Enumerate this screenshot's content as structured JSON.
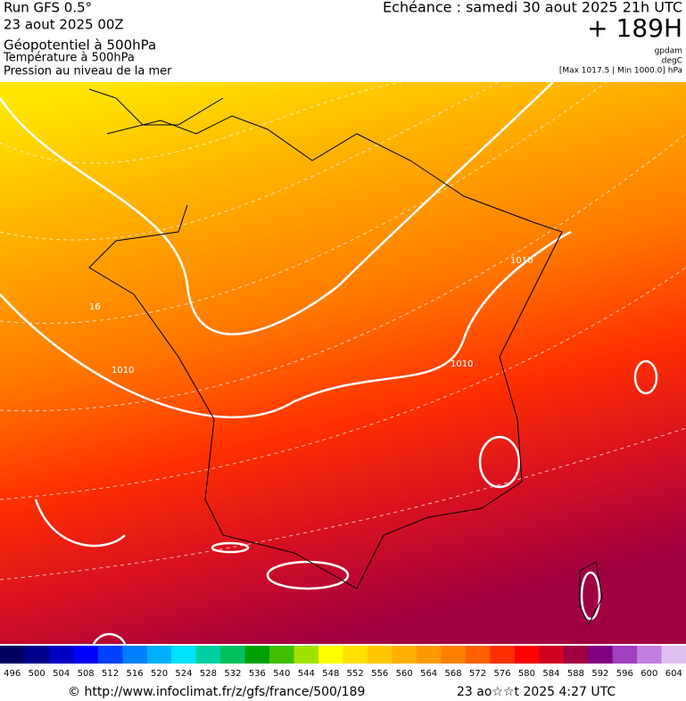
{
  "header": {
    "run": "Run GFS 0.5°",
    "date": "23 aout 2025 00Z",
    "line1": "Géopotentiel à 500hPa",
    "line2": "Température à 500hPa",
    "line3": "Pression au niveau de la mer",
    "valid": "Echéance : samedi 30 aout 2025 21h UTC",
    "lead": "+ 189H",
    "unit1": "gpdam",
    "unit2": "degC",
    "range": "[Max 1017.5 | Min 1000.0] hPa"
  },
  "map": {
    "contour_labels": [
      "1010",
      "1010",
      "1010",
      "16"
    ]
  },
  "colorbar": {
    "labels": [
      496,
      500,
      504,
      508,
      512,
      516,
      520,
      524,
      528,
      532,
      536,
      540,
      544,
      548,
      552,
      556,
      560,
      564,
      568,
      572,
      576,
      580,
      584,
      588,
      592,
      596,
      600,
      604
    ],
    "colors": [
      "#000060",
      "#00008c",
      "#0000c0",
      "#0000ff",
      "#0040ff",
      "#0080ff",
      "#00b0ff",
      "#00e0ff",
      "#00d0a0",
      "#00c060",
      "#00a000",
      "#40c000",
      "#a0e000",
      "#ffff00",
      "#ffe000",
      "#ffc800",
      "#ffb000",
      "#ff9800",
      "#ff8000",
      "#ff6000",
      "#ff3000",
      "#ff0000",
      "#d00020",
      "#a00040",
      "#800080",
      "#a040c0",
      "#c080e0",
      "#e0c0f0"
    ]
  },
  "footer": {
    "url": "© http://www.infoclimat.fr/z/gfs/france/500/189",
    "time": "23 ao☆☆t 2025  4:27 UTC"
  }
}
